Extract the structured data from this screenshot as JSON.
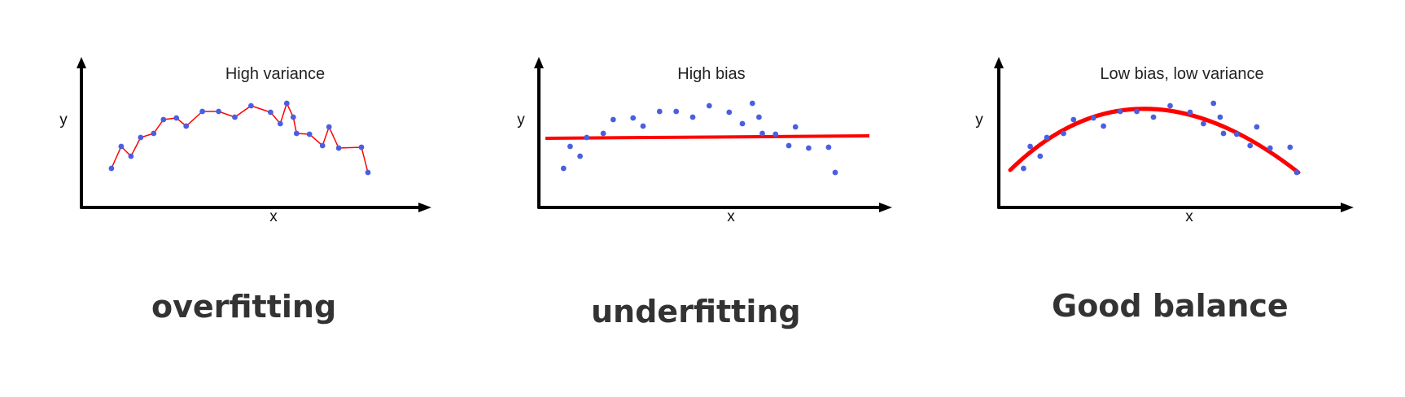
{
  "colors": {
    "points": "#4a5fe0",
    "fit": "#ff0000",
    "axis": "#000000"
  },
  "panels": [
    {
      "title": "High variance",
      "xlabel": "x",
      "ylabel": "y",
      "caption": "overfitting",
      "fit_type": "interpolating",
      "points": [
        [
          0.05,
          0.2
        ],
        [
          0.08,
          0.47
        ],
        [
          0.11,
          0.35
        ],
        [
          0.14,
          0.58
        ],
        [
          0.18,
          0.63
        ],
        [
          0.21,
          0.8
        ],
        [
          0.25,
          0.82
        ],
        [
          0.28,
          0.72
        ],
        [
          0.33,
          0.9
        ],
        [
          0.38,
          0.9
        ],
        [
          0.43,
          0.83
        ],
        [
          0.48,
          0.97
        ],
        [
          0.54,
          0.89
        ],
        [
          0.57,
          0.75
        ],
        [
          0.59,
          1.0
        ],
        [
          0.61,
          0.83
        ],
        [
          0.62,
          0.63
        ],
        [
          0.66,
          0.62
        ],
        [
          0.7,
          0.48
        ],
        [
          0.72,
          0.71
        ],
        [
          0.75,
          0.45
        ],
        [
          0.82,
          0.46
        ],
        [
          0.84,
          0.15
        ]
      ]
    },
    {
      "title": "High bias",
      "xlabel": "x",
      "ylabel": "y",
      "caption": "underfitting",
      "fit_type": "linear",
      "fit_line": [
        [
          0.04,
          0.57
        ],
        [
          0.96,
          0.6
        ]
      ],
      "points": [
        [
          0.04,
          0.2
        ],
        [
          0.06,
          0.47
        ],
        [
          0.09,
          0.35
        ],
        [
          0.11,
          0.58
        ],
        [
          0.16,
          0.63
        ],
        [
          0.19,
          0.8
        ],
        [
          0.25,
          0.82
        ],
        [
          0.28,
          0.72
        ],
        [
          0.33,
          0.9
        ],
        [
          0.38,
          0.9
        ],
        [
          0.43,
          0.83
        ],
        [
          0.48,
          0.97
        ],
        [
          0.54,
          0.89
        ],
        [
          0.58,
          0.75
        ],
        [
          0.61,
          1.0
        ],
        [
          0.63,
          0.83
        ],
        [
          0.64,
          0.63
        ],
        [
          0.68,
          0.62
        ],
        [
          0.72,
          0.48
        ],
        [
          0.74,
          0.71
        ],
        [
          0.78,
          0.45
        ],
        [
          0.84,
          0.46
        ],
        [
          0.86,
          0.15
        ]
      ]
    },
    {
      "title": "Low bias, low variance",
      "xlabel": "x",
      "ylabel": "y",
      "caption": "Good balance",
      "fit_type": "quadratic",
      "points": [
        [
          0.04,
          0.2
        ],
        [
          0.06,
          0.47
        ],
        [
          0.09,
          0.35
        ],
        [
          0.11,
          0.58
        ],
        [
          0.16,
          0.63
        ],
        [
          0.19,
          0.8
        ],
        [
          0.25,
          0.82
        ],
        [
          0.28,
          0.72
        ],
        [
          0.33,
          0.9
        ],
        [
          0.38,
          0.9
        ],
        [
          0.43,
          0.83
        ],
        [
          0.48,
          0.97
        ],
        [
          0.54,
          0.89
        ],
        [
          0.58,
          0.75
        ],
        [
          0.61,
          1.0
        ],
        [
          0.63,
          0.83
        ],
        [
          0.64,
          0.63
        ],
        [
          0.68,
          0.62
        ],
        [
          0.72,
          0.48
        ],
        [
          0.74,
          0.71
        ],
        [
          0.78,
          0.45
        ],
        [
          0.84,
          0.46
        ],
        [
          0.86,
          0.15
        ]
      ]
    }
  ]
}
